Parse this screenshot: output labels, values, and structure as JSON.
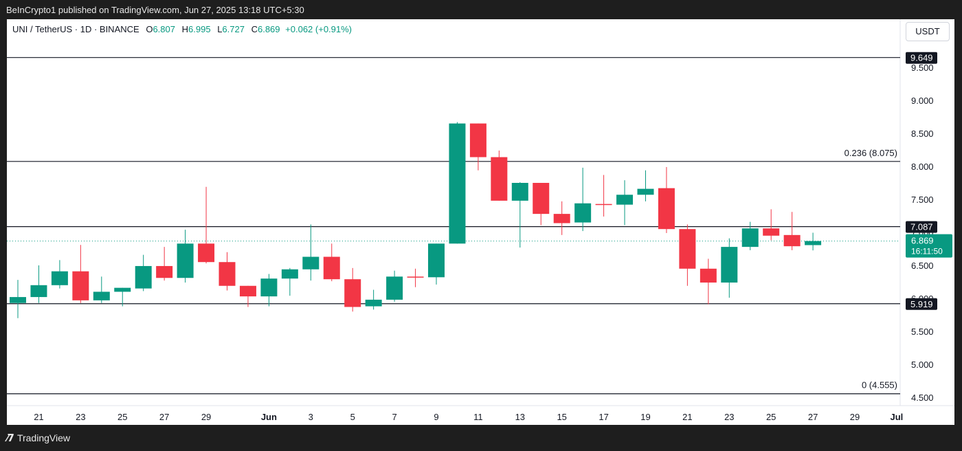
{
  "header": {
    "published_by": "BeInCrypto1 published on TradingView.com, Jun 27, 2025 13:18 UTC+5:30"
  },
  "legend": {
    "symbol": "UNI / TetherUS · 1D · BINANCE",
    "open_key": "O",
    "open": "6.807",
    "high_key": "H",
    "high": "6.995",
    "low_key": "L",
    "low": "6.727",
    "close_key": "C",
    "close": "6.869",
    "change": "+0.062 (+0.91%)"
  },
  "currency_button": "USDT",
  "footer": {
    "brand": "TradingView"
  },
  "colors": {
    "up": "#089981",
    "down": "#f23645",
    "line": "#131722",
    "axis_text": "#131722"
  },
  "chart_data": {
    "type": "candlestick",
    "y_ticks": [
      "4.500",
      "5.000",
      "5.500",
      "6.000",
      "6.500",
      "7.000",
      "7.500",
      "8.000",
      "8.500",
      "9.000",
      "9.500"
    ],
    "x_ticks": [
      "21",
      "23",
      "25",
      "27",
      "29",
      "Jun",
      "3",
      "5",
      "7",
      "9",
      "11",
      "13",
      "15",
      "17",
      "19",
      "21",
      "23",
      "25",
      "27",
      "29",
      "Jul"
    ],
    "ylim": [
      4.33,
      9.9
    ],
    "dates": [
      "May 20",
      "May 21",
      "May 22",
      "May 23",
      "May 24",
      "May 25",
      "May 26",
      "May 27",
      "May 28",
      "May 29",
      "May 30",
      "May 31",
      "Jun 1",
      "Jun 2",
      "Jun 3",
      "Jun 4",
      "Jun 5",
      "Jun 6",
      "Jun 7",
      "Jun 8",
      "Jun 9",
      "Jun 10",
      "Jun 11",
      "Jun 12",
      "Jun 13",
      "Jun 14",
      "Jun 15",
      "Jun 16",
      "Jun 17",
      "Jun 18",
      "Jun 19",
      "Jun 20",
      "Jun 21",
      "Jun 22",
      "Jun 23",
      "Jun 24",
      "Jun 25",
      "Jun 26",
      "Jun 27"
    ],
    "candles": [
      {
        "o": 5.93,
        "h": 6.28,
        "l": 5.7,
        "c": 6.02
      },
      {
        "o": 6.02,
        "h": 6.5,
        "l": 5.93,
        "c": 6.2
      },
      {
        "o": 6.2,
        "h": 6.58,
        "l": 6.15,
        "c": 6.41
      },
      {
        "o": 6.41,
        "h": 6.81,
        "l": 5.93,
        "c": 5.97
      },
      {
        "o": 5.97,
        "h": 6.33,
        "l": 5.93,
        "c": 6.1
      },
      {
        "o": 6.1,
        "h": 6.16,
        "l": 5.88,
        "c": 6.16
      },
      {
        "o": 6.15,
        "h": 6.66,
        "l": 6.11,
        "c": 6.49
      },
      {
        "o": 6.49,
        "h": 6.78,
        "l": 6.27,
        "c": 6.31
      },
      {
        "o": 6.31,
        "h": 7.04,
        "l": 6.24,
        "c": 6.83
      },
      {
        "o": 6.83,
        "h": 7.69,
        "l": 6.53,
        "c": 6.55
      },
      {
        "o": 6.55,
        "h": 6.7,
        "l": 6.12,
        "c": 6.19
      },
      {
        "o": 6.19,
        "h": 6.19,
        "l": 5.87,
        "c": 6.03
      },
      {
        "o": 6.03,
        "h": 6.37,
        "l": 5.88,
        "c": 6.3
      },
      {
        "o": 6.3,
        "h": 6.46,
        "l": 6.04,
        "c": 6.44
      },
      {
        "o": 6.44,
        "h": 7.12,
        "l": 6.27,
        "c": 6.63
      },
      {
        "o": 6.63,
        "h": 6.83,
        "l": 6.26,
        "c": 6.29
      },
      {
        "o": 6.29,
        "h": 6.46,
        "l": 5.8,
        "c": 5.87
      },
      {
        "o": 5.88,
        "h": 6.13,
        "l": 5.83,
        "c": 5.98
      },
      {
        "o": 5.98,
        "h": 6.42,
        "l": 5.95,
        "c": 6.33
      },
      {
        "o": 6.33,
        "h": 6.45,
        "l": 6.17,
        "c": 6.32
      },
      {
        "o": 6.32,
        "h": 6.83,
        "l": 6.21,
        "c": 6.83
      },
      {
        "o": 6.83,
        "h": 8.67,
        "l": 6.83,
        "c": 8.65
      },
      {
        "o": 8.65,
        "h": 8.65,
        "l": 7.94,
        "c": 8.14
      },
      {
        "o": 8.14,
        "h": 8.24,
        "l": 7.48,
        "c": 7.48
      },
      {
        "o": 7.48,
        "h": 7.76,
        "l": 6.77,
        "c": 7.75
      },
      {
        "o": 7.75,
        "h": 7.75,
        "l": 7.11,
        "c": 7.28
      },
      {
        "o": 7.28,
        "h": 7.47,
        "l": 6.96,
        "c": 7.14
      },
      {
        "o": 7.15,
        "h": 7.98,
        "l": 7.02,
        "c": 7.44
      },
      {
        "o": 7.43,
        "h": 7.87,
        "l": 7.24,
        "c": 7.42
      },
      {
        "o": 7.42,
        "h": 7.79,
        "l": 7.11,
        "c": 7.57
      },
      {
        "o": 7.57,
        "h": 7.94,
        "l": 7.47,
        "c": 7.66
      },
      {
        "o": 7.67,
        "h": 7.99,
        "l": 6.99,
        "c": 7.05
      },
      {
        "o": 7.05,
        "h": 7.12,
        "l": 6.19,
        "c": 6.45
      },
      {
        "o": 6.45,
        "h": 6.6,
        "l": 5.91,
        "c": 6.24
      },
      {
        "o": 6.24,
        "h": 6.91,
        "l": 6.01,
        "c": 6.78
      },
      {
        "o": 6.78,
        "h": 7.16,
        "l": 6.73,
        "c": 7.06
      },
      {
        "o": 7.06,
        "h": 7.35,
        "l": 6.88,
        "c": 6.95
      },
      {
        "o": 6.96,
        "h": 7.31,
        "l": 6.73,
        "c": 6.79
      },
      {
        "o": 6.807,
        "h": 6.995,
        "l": 6.727,
        "c": 6.869
      }
    ],
    "levels": [
      {
        "value": 9.649,
        "label": "9.649",
        "text": ""
      },
      {
        "value": 8.075,
        "label": "",
        "text": "0.236 (8.075)"
      },
      {
        "value": 7.087,
        "label": "7.087",
        "text": ""
      },
      {
        "value": 5.919,
        "label": "5.919",
        "text": ""
      },
      {
        "value": 4.555,
        "label": "",
        "text": "0 (4.555)"
      }
    ],
    "last_price": {
      "value": 6.869,
      "label": "6.869",
      "countdown": "16:11:50"
    }
  }
}
